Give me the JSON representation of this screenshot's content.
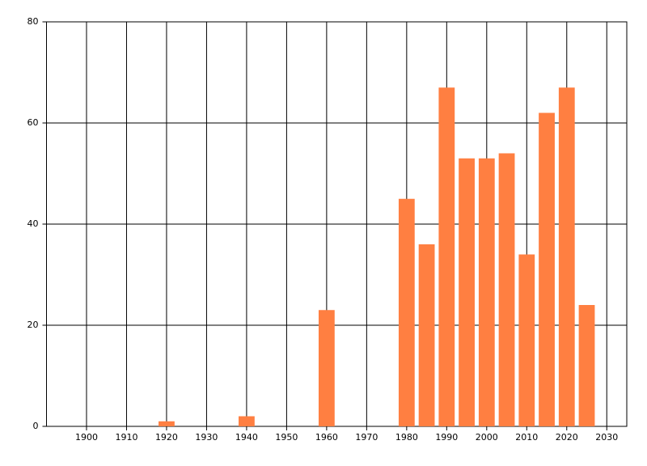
{
  "chart_data": {
    "type": "bar",
    "x": [
      1920,
      1940,
      1960,
      1980,
      1985,
      1990,
      1995,
      2000,
      2005,
      2010,
      2015,
      2020,
      2025
    ],
    "values": [
      1,
      2,
      23,
      45,
      36,
      67,
      53,
      53,
      54,
      34,
      62,
      67,
      24
    ],
    "color": "#ff7f41",
    "xlim": [
      1890,
      2035
    ],
    "xticks": [
      1900,
      1910,
      1920,
      1930,
      1940,
      1950,
      1960,
      1970,
      1980,
      1990,
      2000,
      2010,
      2020,
      2030
    ],
    "ylim": [
      0,
      80
    ],
    "yticks": [
      0,
      20,
      40,
      60,
      80
    ],
    "grid": true
  }
}
